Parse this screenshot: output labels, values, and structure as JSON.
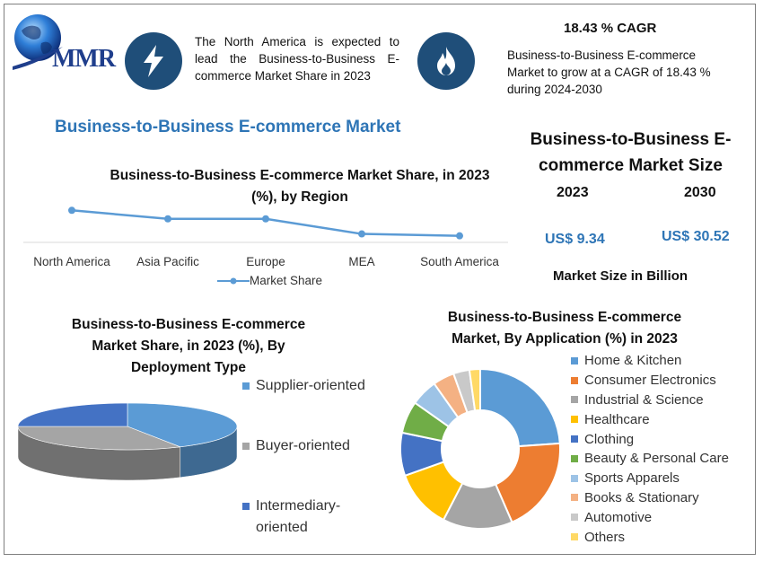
{
  "header": {
    "logo_text": "MMR",
    "left_note": "The North America is expected to lead the Business-to-Business E-commerce Market Share in 2023",
    "cagr_title": "18.43 % CAGR",
    "cagr_note": "Business-to-Business E-commerce Market to grow at a CAGR of 18.43 % during 2024-2030",
    "lightning_icon": "lightning-icon",
    "flame_icon": "flame-icon"
  },
  "main_title": "Business-to-Business E-commerce Market",
  "market_size": {
    "title": "Business-to-Business E-commerce Market Size",
    "year1": "2023",
    "year2": "2030",
    "value1": "US$ 9.34",
    "value2": "US$ 30.52",
    "unit_note": "Market Size in Billion"
  },
  "chart_data": [
    {
      "type": "line",
      "title": "Business-to-Business E-commerce Market Share, in 2023 (%), by Region",
      "categories": [
        "North America",
        "Asia Pacific",
        "Europe",
        "MEA",
        "South America"
      ],
      "series": [
        {
          "name": "Market Share",
          "values": [
            34,
            25,
            25,
            9,
            7
          ],
          "color": "#5b9bd5"
        }
      ],
      "ylim": [
        0,
        40
      ],
      "legend": "bottom"
    },
    {
      "type": "pie",
      "title": "Business-to-Business E-commerce Market Share, in 2023 (%), By Deployment Type",
      "labels": [
        "Supplier-oriented",
        "Buyer-oriented",
        "Intermediary-oriented"
      ],
      "values": [
        42,
        33,
        25
      ],
      "colors": [
        "#5b9bd5",
        "#a5a5a5",
        "#4472c4"
      ],
      "legend": "right"
    },
    {
      "type": "pie",
      "title": "Business-to-Business E-commerce Market, By Application (%) in 2023",
      "labels": [
        "Home & Kitchen",
        "Consumer Electronics",
        "Industrial & Science",
        "Healthcare",
        "Clothing",
        "Beauty & Personal Care",
        "Sports Apparels",
        "Books & Stationary",
        "Automotive",
        "Others"
      ],
      "values": [
        22,
        18,
        13,
        11,
        8,
        6,
        5,
        4,
        3,
        2
      ],
      "colors": [
        "#5b9bd5",
        "#ed7d31",
        "#a5a5a5",
        "#ffc000",
        "#4472c4",
        "#70ad47",
        "#9dc3e6",
        "#f4b183",
        "#c9c9c9",
        "#ffd966"
      ],
      "legend": "right"
    }
  ]
}
